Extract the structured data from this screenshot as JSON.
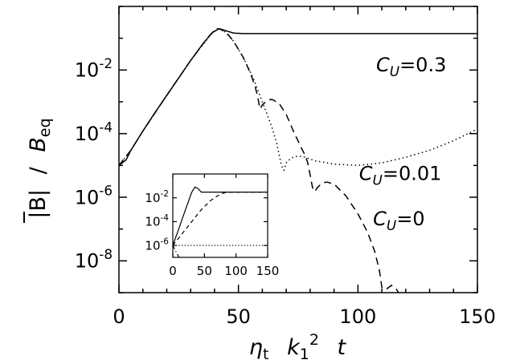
{
  "chart_data": [
    {
      "type": "line",
      "role": "main",
      "xlabel": {
        "eta": "η",
        "eta_sub": "t",
        "k": "k",
        "k_sub": "1",
        "k_sup": "2",
        "t": "t"
      },
      "ylabel": {
        "bar_b": "|B|",
        "sep": "/",
        "b": "B",
        "b_sub": "eq"
      },
      "xlim": [
        0,
        150
      ],
      "ylim": [
        1e-09,
        1
      ],
      "yscale": "log",
      "xticks": [
        0,
        50,
        100,
        150
      ],
      "xtick_labels": [
        "0",
        "50",
        "100",
        "150"
      ],
      "yticks": [
        1e-08,
        1e-06,
        0.0001,
        0.01
      ],
      "ytick_labels": [
        {
          "base": "10",
          "exp": "-8"
        },
        {
          "base": "10",
          "exp": "-6"
        },
        {
          "base": "10",
          "exp": "-4"
        },
        {
          "base": "10",
          "exp": "-2"
        }
      ],
      "annotations": [
        {
          "c": "C",
          "sub": "U",
          "rest": "=0.3",
          "x": 137,
          "y": 0.009
        },
        {
          "c": "C",
          "sub": "U",
          "rest": "=0.01",
          "x": 135,
          "y": 3.5e-06
        },
        {
          "c": "C",
          "sub": "U",
          "rest": "=0",
          "x": 128,
          "y": 1.3e-07
        }
      ],
      "series": [
        {
          "style": "solid",
          "points": [
            [
              0,
              1e-05
            ],
            [
              3,
              1.5e-05
            ],
            [
              5,
              3e-05
            ],
            [
              10,
              0.00012
            ],
            [
              15,
              0.00045
            ],
            [
              20,
              0.0016
            ],
            [
              25,
              0.0056
            ],
            [
              30,
              0.02
            ],
            [
              35,
              0.065
            ],
            [
              39,
              0.15
            ],
            [
              42,
              0.2
            ],
            [
              45,
              0.17
            ],
            [
              48,
              0.145
            ],
            [
              52,
              0.14
            ],
            [
              60,
              0.14
            ],
            [
              80,
              0.14
            ],
            [
              100,
              0.14
            ],
            [
              120,
              0.14
            ],
            [
              150,
              0.14
            ]
          ]
        },
        {
          "style": "dotted",
          "points": [
            [
              0,
              1e-05
            ],
            [
              5,
              3e-05
            ],
            [
              10,
              0.00012
            ],
            [
              20,
              0.0016
            ],
            [
              30,
              0.02
            ],
            [
              38,
              0.12
            ],
            [
              41,
              0.2
            ],
            [
              44,
              0.17
            ],
            [
              48,
              0.08
            ],
            [
              52,
              0.025
            ],
            [
              56,
              0.006
            ],
            [
              60,
              0.001
            ],
            [
              64,
              0.00016
            ],
            [
              66,
              5e-05
            ],
            [
              68,
              1e-05
            ],
            [
              69,
              7e-06
            ],
            [
              70,
              1.2e-05
            ],
            [
              72,
              1.7e-05
            ],
            [
              75,
              2e-05
            ],
            [
              78,
              1.8e-05
            ],
            [
              82,
              1.4e-05
            ],
            [
              90,
              1.1e-05
            ],
            [
              100,
              1e-05
            ],
            [
              110,
              1.2e-05
            ],
            [
              120,
              1.8e-05
            ],
            [
              130,
              3e-05
            ],
            [
              140,
              6e-05
            ],
            [
              150,
              0.00014
            ]
          ]
        },
        {
          "style": "dashed",
          "points": [
            [
              0,
              1e-05
            ],
            [
              5,
              3e-05
            ],
            [
              10,
              0.00012
            ],
            [
              20,
              0.0016
            ],
            [
              30,
              0.02
            ],
            [
              37,
              0.1
            ],
            [
              40,
              0.18
            ],
            [
              42,
              0.2
            ],
            [
              45,
              0.15
            ],
            [
              48,
              0.08
            ],
            [
              52,
              0.025
            ],
            [
              55,
              0.008
            ],
            [
              57,
              0.003
            ],
            [
              58,
              0.0015
            ],
            [
              59,
              0.0006
            ],
            [
              60,
              0.0008
            ],
            [
              62,
              0.0011
            ],
            [
              64,
              0.0012
            ],
            [
              67,
              0.0009
            ],
            [
              70,
              0.0004
            ],
            [
              73,
              0.00012
            ],
            [
              76,
              4e-05
            ],
            [
              78,
              2e-05
            ],
            [
              79,
              1.2e-05
            ],
            [
              80,
              5e-06
            ],
            [
              81,
              2e-06
            ],
            [
              82,
              1.5e-06
            ],
            [
              83,
              2e-06
            ],
            [
              85,
              2.8e-06
            ],
            [
              87,
              3e-06
            ],
            [
              90,
              2.6e-06
            ],
            [
              95,
              1.1e-06
            ],
            [
              100,
              3e-07
            ],
            [
              104,
              8e-08
            ],
            [
              107,
              2e-08
            ],
            [
              109,
              5e-09
            ],
            [
              110,
              1.5e-09
            ],
            [
              111,
              1e-09
            ]
          ]
        },
        {
          "style": "dashed",
          "points": [
            [
              112,
              1.3e-09
            ],
            [
              114,
              1.7e-09
            ],
            [
              116,
              1.3e-09
            ],
            [
              117,
              1e-09
            ]
          ]
        }
      ]
    },
    {
      "type": "line",
      "role": "inset",
      "xlim": [
        0,
        150
      ],
      "ylim": [
        1e-07,
        1
      ],
      "yscale": "log",
      "xticks": [
        0,
        50,
        100,
        150
      ],
      "xtick_labels": [
        "0",
        "50",
        "100",
        "150"
      ],
      "yticks": [
        1e-06,
        0.0001,
        0.01
      ],
      "ytick_labels": [
        {
          "base": "10",
          "exp": "-6"
        },
        {
          "base": "10",
          "exp": "-4"
        },
        {
          "base": "10",
          "exp": "-2"
        }
      ],
      "series": [
        {
          "style": "solid",
          "points": [
            [
              0,
              1e-06
            ],
            [
              10,
              3e-05
            ],
            [
              20,
              0.001
            ],
            [
              30,
              0.03
            ],
            [
              35,
              0.08
            ],
            [
              40,
              0.06
            ],
            [
              45,
              0.03
            ],
            [
              50,
              0.03
            ],
            [
              150,
              0.03
            ]
          ]
        },
        {
          "style": "dashed",
          "points": [
            [
              0,
              1e-06
            ],
            [
              15,
              1e-05
            ],
            [
              30,
              0.0001
            ],
            [
              45,
              0.001
            ],
            [
              60,
              0.006
            ],
            [
              75,
              0.02
            ],
            [
              85,
              0.03
            ],
            [
              150,
              0.03
            ]
          ]
        },
        {
          "style": "dotted",
          "points": [
            [
              0,
              1e-06
            ],
            [
              150,
              1e-06
            ]
          ]
        },
        {
          "style": "dashdot",
          "points": [
            [
              0,
              1e-06
            ],
            [
              5,
              3e-07
            ],
            [
              10,
              1e-07
            ]
          ]
        }
      ]
    }
  ]
}
